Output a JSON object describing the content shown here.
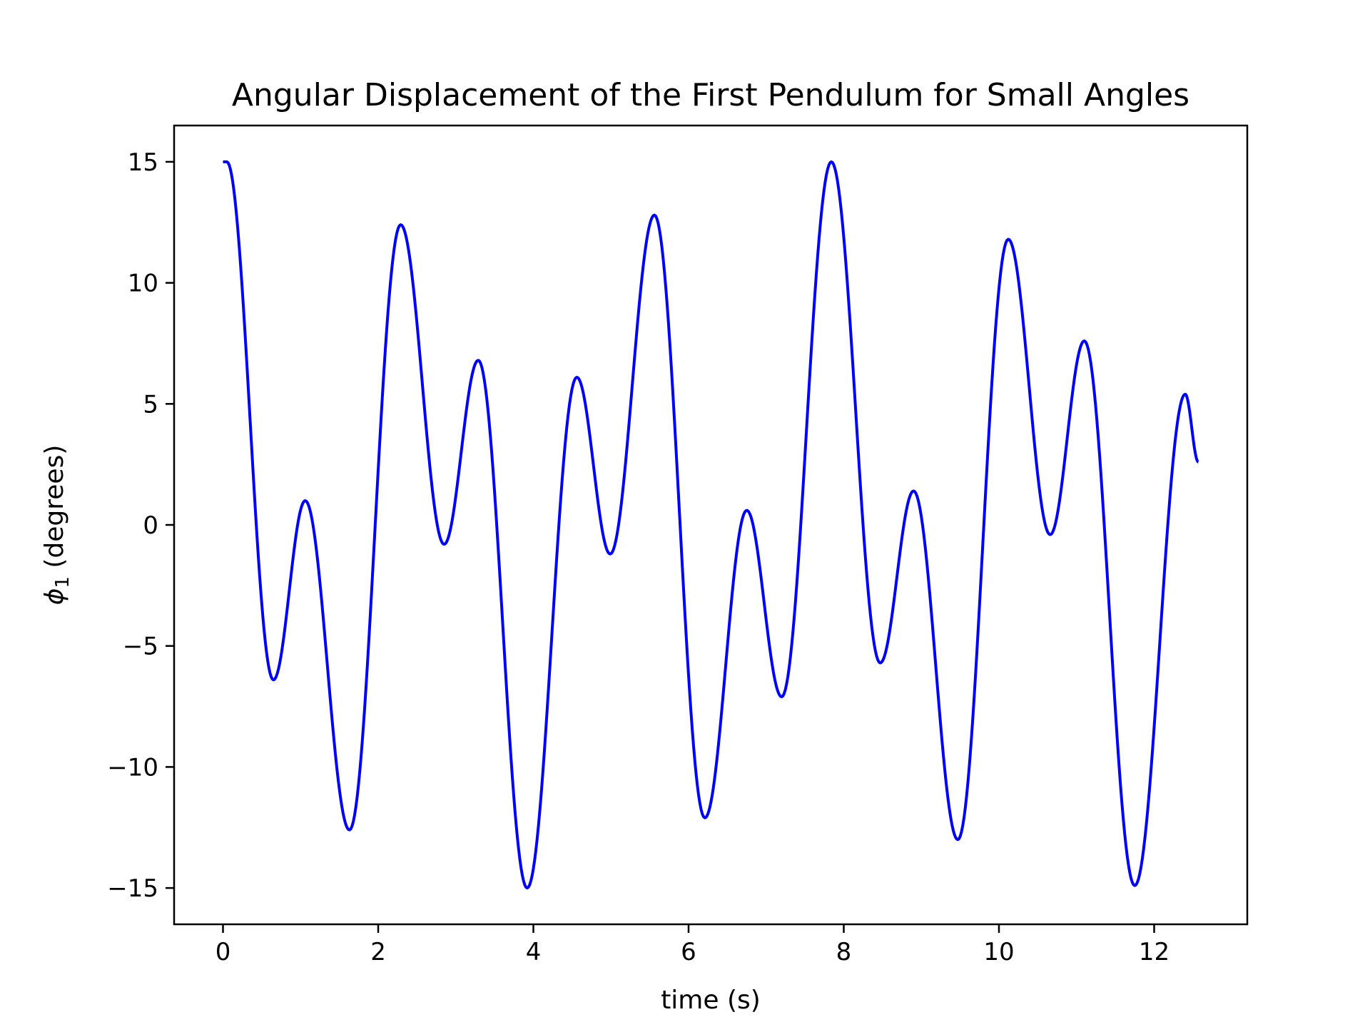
{
  "chart_data": {
    "type": "line",
    "title": "Angular Displacement of the First Pendulum for Small Angles",
    "xlabel": "time (s)",
    "ylabel_symbol": "ϕ",
    "ylabel_subscript": "1",
    "ylabel_text": " (degrees)",
    "xlim": [
      -0.63,
      13.2
    ],
    "ylim": [
      -16.5,
      16.5
    ],
    "xticks": [
      0,
      2,
      4,
      6,
      8,
      10,
      12
    ],
    "xtick_labels": [
      "0",
      "2",
      "4",
      "6",
      "8",
      "10",
      "12"
    ],
    "yticks": [
      -15,
      -10,
      -5,
      0,
      5,
      10,
      15
    ],
    "ytick_labels": [
      "−15",
      "−10",
      "−5",
      "0",
      "5",
      "10",
      "15"
    ],
    "grid": false,
    "legend": "none",
    "series": [
      {
        "color": "#0000ff",
        "x": [
          0,
          0.05,
          0.65,
          1.06,
          1.63,
          2.29,
          2.85,
          3.29,
          3.92,
          4.56,
          4.99,
          5.56,
          6.21,
          6.75,
          7.2,
          7.84,
          8.47,
          8.9,
          9.47,
          10.12,
          10.66,
          11.1,
          11.75,
          12.4,
          12.57
        ],
        "y": [
          15.0,
          15.0,
          -6.4,
          1.0,
          -12.6,
          12.4,
          -0.8,
          6.8,
          -15.0,
          6.1,
          -1.2,
          12.8,
          -12.1,
          0.6,
          -7.1,
          15.0,
          -5.7,
          1.4,
          -13.0,
          11.8,
          -0.4,
          7.6,
          -14.9,
          5.4,
          2.6
        ]
      }
    ]
  }
}
